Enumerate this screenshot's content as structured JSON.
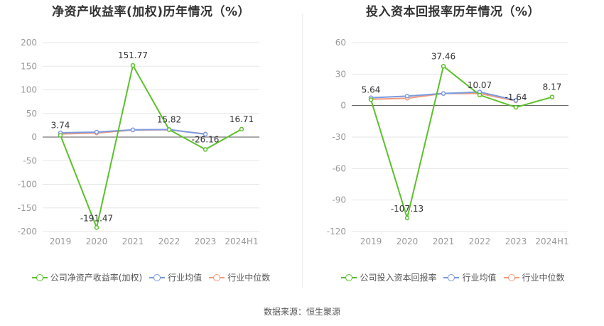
{
  "source_text": "数据来源：恒生聚源",
  "chart_data": [
    {
      "type": "line",
      "title": "净资产收益率(加权)历年情况（%）",
      "categories": [
        "2019",
        "2020",
        "2021",
        "2022",
        "2023",
        "2024H1"
      ],
      "ylim": [
        -200,
        200
      ],
      "yticks": [
        200,
        150,
        100,
        50,
        0,
        -50,
        -100,
        -150,
        -200
      ],
      "ytick_labels": [
        "200",
        "150",
        "100",
        "50",
        "0",
        "-50",
        "-100",
        "-150",
        "-200"
      ],
      "grid": true,
      "legend_position": "bottom",
      "series": [
        {
          "name": "公司净资产收益率(加权)",
          "color": "#5cc12b",
          "values": [
            3.74,
            -191.47,
            151.77,
            15.82,
            -26.16,
            16.71
          ],
          "labels": [
            "3.74",
            "-191.47",
            "151.77",
            "15.82",
            "-26.16",
            "16.71"
          ]
        },
        {
          "name": "行业均值",
          "color": "#7b9be0",
          "values": [
            9.0,
            10.5,
            15.5,
            16.0,
            6.0,
            null
          ]
        },
        {
          "name": "行业中位数",
          "color": "#f29a7c",
          "values": [
            6.5,
            8.5,
            15.0,
            15.5,
            6.5,
            null
          ]
        }
      ]
    },
    {
      "type": "line",
      "title": "投入资本回报率历年情况（%）",
      "categories": [
        "2019",
        "2020",
        "2021",
        "2022",
        "2023",
        "2024H1"
      ],
      "ylim": [
        -120,
        60
      ],
      "yticks": [
        60,
        30,
        0,
        -30,
        -60,
        -90,
        -120
      ],
      "ytick_labels": [
        "60",
        "30",
        "0",
        "-30",
        "-60",
        "-90",
        "-120"
      ],
      "grid": true,
      "legend_position": "bottom",
      "series": [
        {
          "name": "公司投入资本回报率",
          "color": "#5cc12b",
          "values": [
            5.64,
            -107.13,
            37.46,
            10.07,
            -1.64,
            8.17
          ],
          "labels": [
            "5.64",
            "-107.13",
            "37.46",
            "10.07",
            "-1.64",
            "8.17"
          ]
        },
        {
          "name": "行业均值",
          "color": "#7b9be0",
          "values": [
            7.5,
            9.0,
            11.5,
            13.0,
            5.0,
            null
          ]
        },
        {
          "name": "行业中位数",
          "color": "#f29a7c",
          "values": [
            6.0,
            7.0,
            11.5,
            11.5,
            4.5,
            null
          ]
        }
      ]
    }
  ]
}
